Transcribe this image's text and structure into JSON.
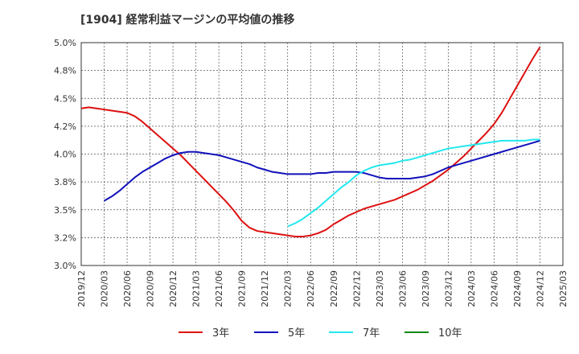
{
  "chart_data": {
    "type": "line",
    "title": "[1904]  経常利益マージンの平均値の推移",
    "xlabel": "",
    "ylabel": "",
    "x_ticks": [
      "2019/12",
      "2020/03",
      "2020/06",
      "2020/09",
      "2020/12",
      "2021/03",
      "2021/06",
      "2021/09",
      "2021/12",
      "2022/03",
      "2022/06",
      "2022/09",
      "2022/12",
      "2023/03",
      "2023/06",
      "2023/09",
      "2023/12",
      "2024/03",
      "2024/06",
      "2024/09",
      "2024/12",
      "2025/03"
    ],
    "y_ticks": [
      "3.0%",
      "3.2%",
      "3.5%",
      "3.8%",
      "4.0%",
      "4.2%",
      "4.5%",
      "4.8%",
      "5.0%"
    ],
    "ylim": [
      3.0,
      5.0
    ],
    "grid": true,
    "legend_position": "bottom",
    "series": [
      {
        "name": "3年",
        "color": "#dd1111",
        "points": [
          [
            "2019/12",
            4.41
          ],
          [
            "2020/01",
            4.42
          ],
          [
            "2020/02",
            4.41
          ],
          [
            "2020/03",
            4.4
          ],
          [
            "2020/04",
            4.39
          ],
          [
            "2020/05",
            4.38
          ],
          [
            "2020/06",
            4.37
          ],
          [
            "2020/07",
            4.34
          ],
          [
            "2020/08",
            4.29
          ],
          [
            "2020/09",
            4.23
          ],
          [
            "2020/10",
            4.17
          ],
          [
            "2020/11",
            4.11
          ],
          [
            "2020/12",
            4.05
          ],
          [
            "2021/01",
            3.99
          ],
          [
            "2021/02",
            3.92
          ],
          [
            "2021/03",
            3.85
          ],
          [
            "2021/04",
            3.78
          ],
          [
            "2021/05",
            3.71
          ],
          [
            "2021/06",
            3.64
          ],
          [
            "2021/07",
            3.57
          ],
          [
            "2021/08",
            3.49
          ],
          [
            "2021/09",
            3.4
          ],
          [
            "2021/10",
            3.34
          ],
          [
            "2021/11",
            3.31
          ],
          [
            "2021/12",
            3.3
          ],
          [
            "2022/01",
            3.29
          ],
          [
            "2022/02",
            3.28
          ],
          [
            "2022/03",
            3.27
          ],
          [
            "2022/04",
            3.26
          ],
          [
            "2022/05",
            3.26
          ],
          [
            "2022/06",
            3.27
          ],
          [
            "2022/07",
            3.29
          ],
          [
            "2022/08",
            3.32
          ],
          [
            "2022/09",
            3.37
          ],
          [
            "2022/10",
            3.41
          ],
          [
            "2022/11",
            3.45
          ],
          [
            "2022/12",
            3.48
          ],
          [
            "2023/01",
            3.51
          ],
          [
            "2023/02",
            3.53
          ],
          [
            "2023/03",
            3.55
          ],
          [
            "2023/04",
            3.57
          ],
          [
            "2023/05",
            3.59
          ],
          [
            "2023/06",
            3.62
          ],
          [
            "2023/07",
            3.65
          ],
          [
            "2023/08",
            3.68
          ],
          [
            "2023/09",
            3.72
          ],
          [
            "2023/10",
            3.76
          ],
          [
            "2023/11",
            3.81
          ],
          [
            "2023/12",
            3.86
          ],
          [
            "2024/01",
            3.92
          ],
          [
            "2024/02",
            3.98
          ],
          [
            "2024/03",
            4.05
          ],
          [
            "2024/04",
            4.12
          ],
          [
            "2024/05",
            4.19
          ],
          [
            "2024/06",
            4.27
          ],
          [
            "2024/07",
            4.37
          ],
          [
            "2024/08",
            4.49
          ],
          [
            "2024/09",
            4.61
          ],
          [
            "2024/10",
            4.73
          ],
          [
            "2024/11",
            4.85
          ],
          [
            "2024/12",
            4.96
          ]
        ]
      },
      {
        "name": "5年",
        "color": "#1111bb",
        "points": [
          [
            "2020/03",
            3.58
          ],
          [
            "2020/04",
            3.62
          ],
          [
            "2020/05",
            3.67
          ],
          [
            "2020/06",
            3.73
          ],
          [
            "2020/07",
            3.79
          ],
          [
            "2020/08",
            3.84
          ],
          [
            "2020/09",
            3.88
          ],
          [
            "2020/10",
            3.92
          ],
          [
            "2020/11",
            3.96
          ],
          [
            "2020/12",
            3.99
          ],
          [
            "2021/01",
            4.01
          ],
          [
            "2021/02",
            4.02
          ],
          [
            "2021/03",
            4.02
          ],
          [
            "2021/04",
            4.01
          ],
          [
            "2021/05",
            4.0
          ],
          [
            "2021/06",
            3.99
          ],
          [
            "2021/07",
            3.97
          ],
          [
            "2021/08",
            3.95
          ],
          [
            "2021/09",
            3.93
          ],
          [
            "2021/10",
            3.91
          ],
          [
            "2021/11",
            3.88
          ],
          [
            "2021/12",
            3.86
          ],
          [
            "2022/01",
            3.84
          ],
          [
            "2022/02",
            3.83
          ],
          [
            "2022/03",
            3.82
          ],
          [
            "2022/04",
            3.82
          ],
          [
            "2022/05",
            3.82
          ],
          [
            "2022/06",
            3.82
          ],
          [
            "2022/07",
            3.83
          ],
          [
            "2022/08",
            3.83
          ],
          [
            "2022/09",
            3.84
          ],
          [
            "2022/10",
            3.84
          ],
          [
            "2022/11",
            3.84
          ],
          [
            "2022/12",
            3.84
          ],
          [
            "2023/01",
            3.83
          ],
          [
            "2023/02",
            3.81
          ],
          [
            "2023/03",
            3.79
          ],
          [
            "2023/04",
            3.78
          ],
          [
            "2023/05",
            3.78
          ],
          [
            "2023/06",
            3.78
          ],
          [
            "2023/07",
            3.78
          ],
          [
            "2023/08",
            3.79
          ],
          [
            "2023/09",
            3.8
          ],
          [
            "2023/10",
            3.82
          ],
          [
            "2023/11",
            3.85
          ],
          [
            "2023/12",
            3.88
          ],
          [
            "2024/01",
            3.9
          ],
          [
            "2024/02",
            3.92
          ],
          [
            "2024/03",
            3.94
          ],
          [
            "2024/04",
            3.96
          ],
          [
            "2024/05",
            3.98
          ],
          [
            "2024/06",
            4.0
          ],
          [
            "2024/07",
            4.02
          ],
          [
            "2024/08",
            4.04
          ],
          [
            "2024/09",
            4.06
          ],
          [
            "2024/10",
            4.08
          ],
          [
            "2024/11",
            4.1
          ],
          [
            "2024/12",
            4.12
          ]
        ]
      },
      {
        "name": "7年",
        "color": "#22e8ee",
        "points": [
          [
            "2022/03",
            3.35
          ],
          [
            "2022/04",
            3.38
          ],
          [
            "2022/05",
            3.42
          ],
          [
            "2022/06",
            3.47
          ],
          [
            "2022/07",
            3.52
          ],
          [
            "2022/08",
            3.58
          ],
          [
            "2022/09",
            3.64
          ],
          [
            "2022/10",
            3.7
          ],
          [
            "2022/11",
            3.75
          ],
          [
            "2022/12",
            3.81
          ],
          [
            "2023/01",
            3.85
          ],
          [
            "2023/02",
            3.88
          ],
          [
            "2023/03",
            3.9
          ],
          [
            "2023/04",
            3.91
          ],
          [
            "2023/05",
            3.92
          ],
          [
            "2023/06",
            3.94
          ],
          [
            "2023/07",
            3.95
          ],
          [
            "2023/08",
            3.97
          ],
          [
            "2023/09",
            3.99
          ],
          [
            "2023/10",
            4.01
          ],
          [
            "2023/11",
            4.03
          ],
          [
            "2023/12",
            4.05
          ],
          [
            "2024/01",
            4.06
          ],
          [
            "2024/02",
            4.07
          ],
          [
            "2024/03",
            4.08
          ],
          [
            "2024/04",
            4.09
          ],
          [
            "2024/05",
            4.1
          ],
          [
            "2024/06",
            4.11
          ],
          [
            "2024/07",
            4.12
          ],
          [
            "2024/08",
            4.12
          ],
          [
            "2024/09",
            4.12
          ],
          [
            "2024/10",
            4.12
          ],
          [
            "2024/11",
            4.13
          ],
          [
            "2024/12",
            4.13
          ]
        ]
      },
      {
        "name": "10年",
        "color": "#118811",
        "points": []
      }
    ]
  }
}
